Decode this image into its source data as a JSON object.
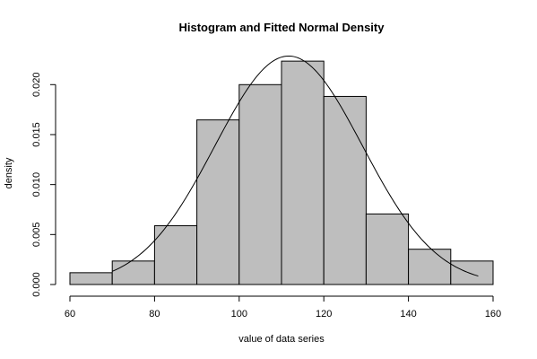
{
  "chart_data": {
    "type": "bar",
    "subtype": "histogram-with-density-curve",
    "title": "Histogram and Fitted Normal Density",
    "xlabel": "value of data series",
    "ylabel": "density",
    "xlim": [
      60,
      160
    ],
    "ylim": [
      0,
      0.0229
    ],
    "x_ticks": [
      "60",
      "80",
      "100",
      "120",
      "140",
      "160"
    ],
    "y_ticks": [
      "0.000",
      "0.005",
      "0.010",
      "0.015",
      "0.020"
    ],
    "bins": [
      {
        "start": 60,
        "end": 70,
        "density": 0.00118
      },
      {
        "start": 70,
        "end": 80,
        "density": 0.00235
      },
      {
        "start": 80,
        "end": 90,
        "density": 0.00588
      },
      {
        "start": 90,
        "end": 100,
        "density": 0.01647
      },
      {
        "start": 100,
        "end": 110,
        "density": 0.02
      },
      {
        "start": 110,
        "end": 120,
        "density": 0.02235
      },
      {
        "start": 120,
        "end": 130,
        "density": 0.01882
      },
      {
        "start": 130,
        "end": 140,
        "density": 0.00706
      },
      {
        "start": 140,
        "end": 150,
        "density": 0.00353
      },
      {
        "start": 150,
        "end": 160,
        "density": 0.00235
      }
    ],
    "fitted_normal": {
      "mean": 111.7,
      "sd": 17.45,
      "x_range": [
        70,
        156.5
      ]
    },
    "bar_color": "#bebebe",
    "line_color": "#000000",
    "grid": false
  }
}
